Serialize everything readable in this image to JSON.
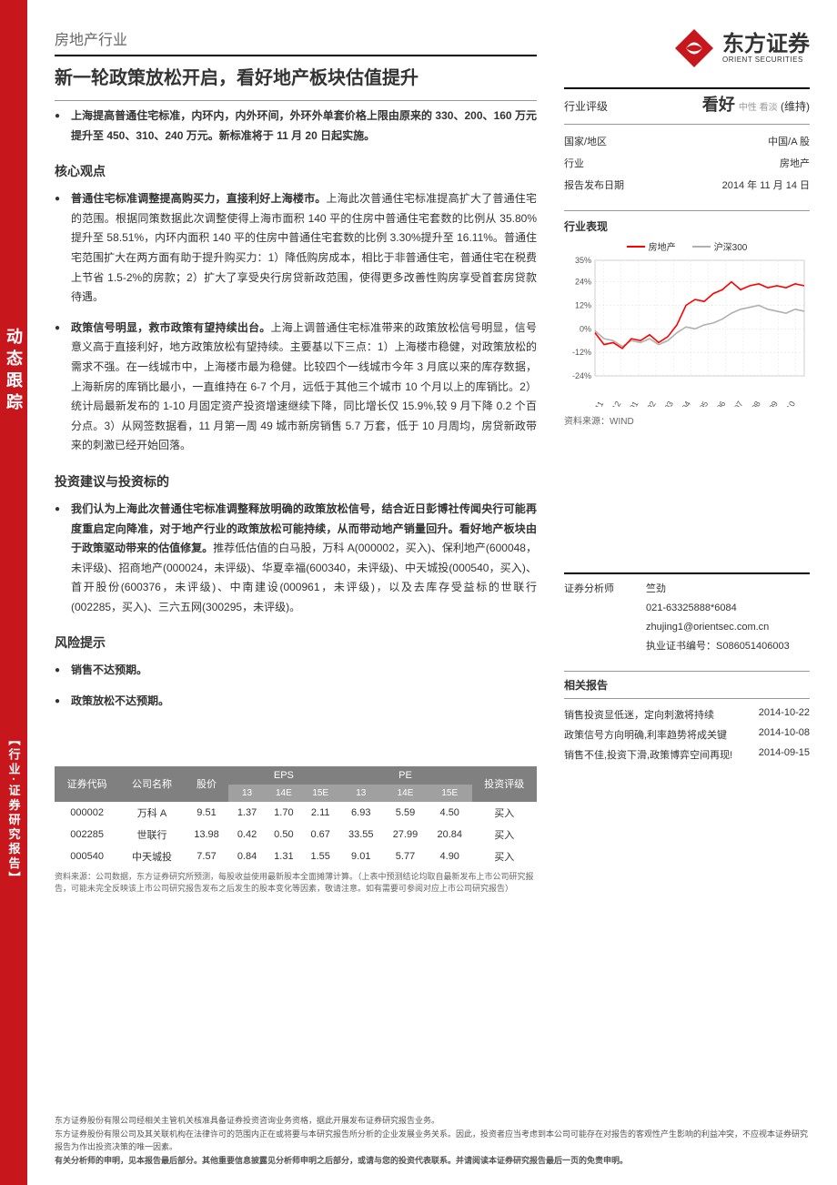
{
  "sidebar": {
    "label1": "动态跟踪",
    "label2": "【行业·证券研究报告】"
  },
  "header": {
    "industry": "房地产行业",
    "title": "新一轮政策放松开启，看好地产板块估值提升"
  },
  "logo": {
    "cn": "东方证券",
    "en": "ORIENT SECURITIES"
  },
  "summary_bullet": "上海提高普通住宅标准，内环内，内外环间，外环外单套价格上限由原来的 330、200、160 万元提升至 450、310、240 万元。新标准将于 11 月 20 日起实施。",
  "core_title": "核心观点",
  "core": [
    {
      "lead": "普通住宅标准调整提高购买力，直接利好上海楼市。",
      "body": "上海此次普通住宅标准提高扩大了普通住宅的范围。根据同策数据此次调整使得上海市面积 140 平的住房中普通住宅套数的比例从 35.80%提升至 58.51%，内环内面积 140 平的住房中普通住宅套数的比例 3.30%提升至 16.11%。普通住宅范围扩大在两方面有助于提升购买力：1）降低购房成本，相比于非普通住宅，普通住宅在税费上节省 1.5-2%的房款；2）扩大了享受央行房贷新政范围，使得更多改善性购房享受首套房贷款待遇。"
    },
    {
      "lead": "政策信号明显，救市政策有望持续出台。",
      "body": "上海上调普通住宅标准带来的政策放松信号明显，信号意义高于直接利好，地方政策放松有望持续。主要基以下三点：1）上海楼市稳健，对政策放松的需求不强。在一线城市中，上海楼市最为稳健。比较四个一线城市今年 3 月底以来的库存数据，上海新房的库销比最小，一直维持在 6-7 个月，远低于其他三个城市 10 个月以上的库销比。2）统计局最新发布的 1-10 月固定资产投资增速继续下降，同比增长仅 15.9%,较 9 月下降 0.2 个百分点。3）从网签数据看，11 月第一周 49 城市新房销售 5.7 万套，低于 10 月周均，房贷新政带来的刺激已经开始回落。"
    }
  ],
  "invest_title": "投资建议与投资标的",
  "invest_bullet": {
    "lead": "我们认为上海此次普通住宅标准调整释放明确的政策放松信号，结合近日彭博社传闻央行可能再度重启定向降准，对于地产行业的政策放松可能持续，从而带动地产销量回升。看好地产板块由于政策驱动带来的估值修复。",
    "body": "推荐低估值的白马股，万科 A(000002，买入)、保利地产(600048，未评级)、招商地产(000024，未评级)、华夏幸福(600340，未评级)、中天城投(000540，买入)、首开股份(600376，未评级)、中南建设(000961，未评级)，以及去库存受益标的世联行(002285，买入)、三六五网(300295，未评级)。"
  },
  "risk_title": "风险提示",
  "risks": [
    "销售不达预期。",
    "政策放松不达预期。"
  ],
  "rating": {
    "label": "行业评级",
    "main": "看好",
    "alts": "中性 看淡",
    "status": "(维持)"
  },
  "meta": [
    {
      "k": "国家/地区",
      "v": "中国/A 股"
    },
    {
      "k": "行业",
      "v": "房地产"
    },
    {
      "k": "报告发布日期",
      "v": "2014 年 11 月 14 日"
    }
  ],
  "chart": {
    "title": "行业表现",
    "source": "资料来源：WIND",
    "series": [
      {
        "name": "房地产",
        "color": "#ff0000"
      },
      {
        "name": "沪深300",
        "color": "#b0b0b0"
      }
    ],
    "yticks": [
      "35%",
      "24%",
      "12%",
      "0%",
      "-12%",
      "-24%"
    ],
    "ylim": [
      -24,
      35
    ],
    "xlabels": [
      "13/11",
      "13/12",
      "14/01",
      "14/02",
      "14/03",
      "14/04",
      "14/05",
      "14/06",
      "14/07",
      "14/08",
      "14/09",
      "14/10"
    ],
    "s1": [
      -2,
      -8,
      -7,
      -10,
      -5,
      -6,
      -3,
      -7,
      -4,
      2,
      12,
      15,
      14,
      18,
      20,
      24,
      20,
      22,
      23,
      21,
      22,
      21,
      23,
      22
    ],
    "s2": [
      -1,
      -5,
      -6,
      -9,
      -6,
      -7,
      -5,
      -8,
      -6,
      -2,
      1,
      0,
      2,
      3,
      5,
      8,
      10,
      11,
      12,
      10,
      9,
      8,
      10,
      9
    ],
    "bg": "#ffffff",
    "grid": "#dddddd",
    "axis": "#999999",
    "fontsize": 9
  },
  "analyst": {
    "label": "证券分析师",
    "name": "竺劲",
    "phone": "021-63325888*6084",
    "email": "zhujing1@orientsec.com.cn",
    "cert_label": "执业证书编号：",
    "cert": "S086051406003"
  },
  "related": {
    "title": "相关报告",
    "items": [
      {
        "t": "销售投资显低迷，定向刺激将持续",
        "d": "2014-10-22"
      },
      {
        "t": "政策信号方向明确,利率趋势将成关键",
        "d": "2014-10-08"
      },
      {
        "t": "销售不佳,投资下滑,政策博弈空间再现!",
        "d": "2014-09-15"
      }
    ]
  },
  "table": {
    "headers": {
      "code": "证券代码",
      "name": "公司名称",
      "price": "股价",
      "eps": "EPS",
      "pe": "PE",
      "rating": "投资评级"
    },
    "sub": [
      "13",
      "14E",
      "15E",
      "13",
      "14E",
      "15E"
    ],
    "rows": [
      [
        "000002",
        "万科 A",
        "9.51",
        "1.37",
        "1.70",
        "2.11",
        "6.93",
        "5.59",
        "4.50",
        "买入"
      ],
      [
        "002285",
        "世联行",
        "13.98",
        "0.42",
        "0.50",
        "0.67",
        "33.55",
        "27.99",
        "20.84",
        "买入"
      ],
      [
        "000540",
        "中天城投",
        "7.57",
        "0.84",
        "1.31",
        "1.55",
        "9.01",
        "5.77",
        "4.90",
        "买入"
      ]
    ],
    "note": "资料来源：公司数据，东方证券研究所预测，每股收益使用最新股本全面摊薄计算。（上表中预测结论均取自最新发布上市公司研究报告，可能未完全反映该上市公司研究报告发布之后发生的股本变化等因素，敬请注意。如有需要可参阅对应上市公司研究报告）"
  },
  "footer": {
    "l1": "东方证券股份有限公司经相关主管机关核准具备证券投资咨询业务资格，据此开展发布证券研究报告业务。",
    "l2": "东方证券股份有限公司及其关联机构在法律许可的范围内正在或将要与本研究报告所分析的企业发展业务关系。因此，投资者应当考虑到本公司可能存在对报告的客观性产生影响的利益冲突，不应视本证券研究报告为作出投资决策的唯一因素。",
    "l3": "有关分析师的申明，见本报告最后部分。其他重要信息披露见分析师申明之后部分，或请与您的投资代表联系。并请阅读本证券研究报告最后一页的免责申明。"
  }
}
